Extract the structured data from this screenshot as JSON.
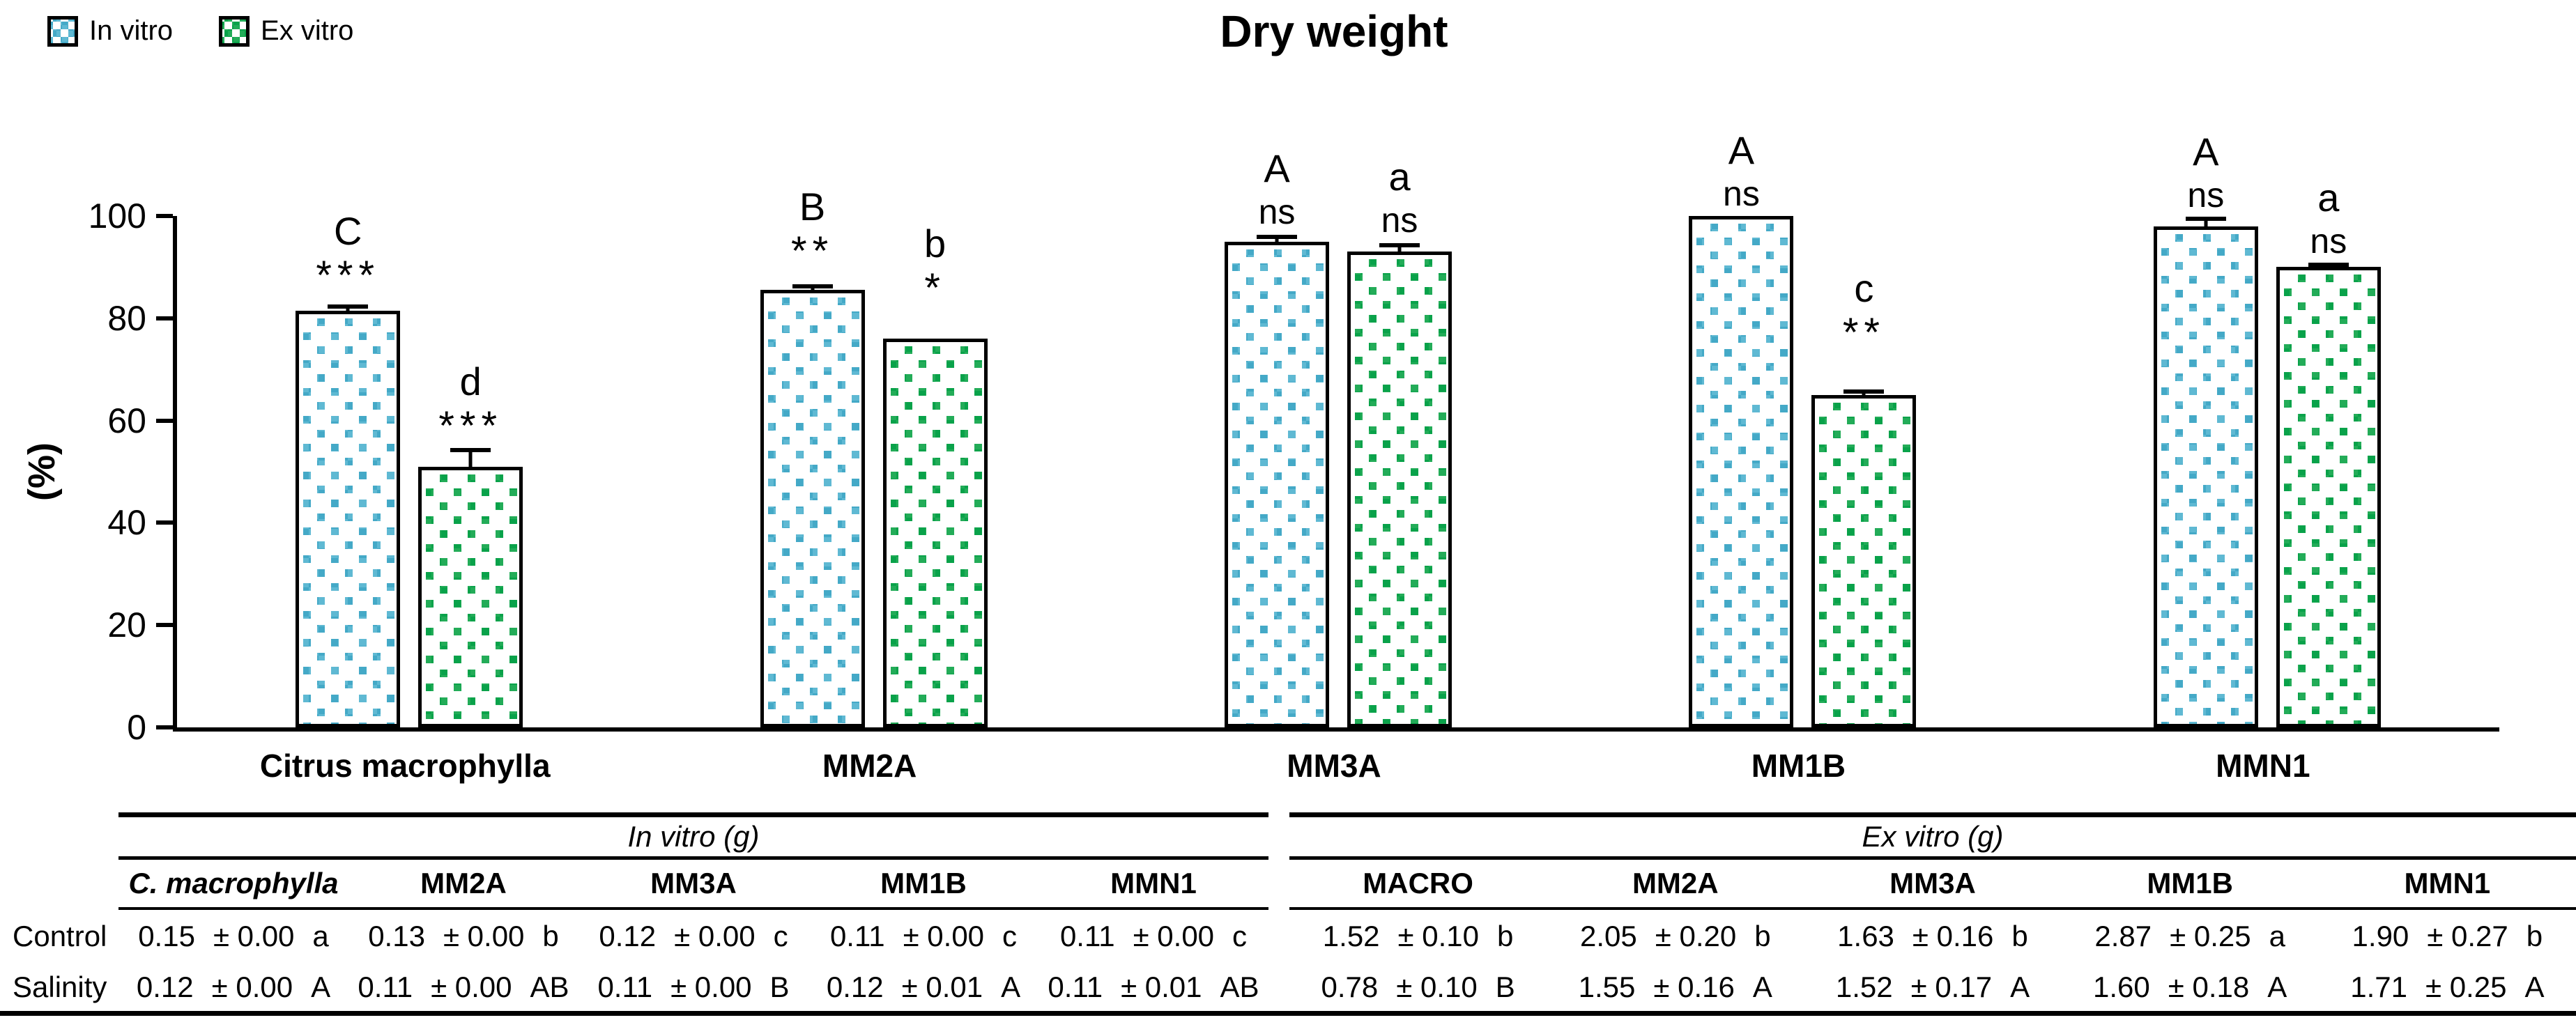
{
  "title": "Dry weight",
  "legend": [
    {
      "label": "In vitro",
      "color": "#44a9c7"
    },
    {
      "label": "Ex vitro",
      "color": "#09a24a"
    }
  ],
  "chart_data": {
    "type": "bar",
    "title": "Dry weight",
    "xlabel": "",
    "ylabel": "(%)",
    "ylim": [
      0,
      100
    ],
    "yticks": [
      0,
      20,
      40,
      60,
      80,
      100
    ],
    "grid": false,
    "legend_position": "top-left",
    "categories": [
      "Citrus macrophylla",
      "MM2A",
      "MM3A",
      "MM1B",
      "MMN1"
    ],
    "series": [
      {
        "name": "In vitro",
        "color": "#44a9c7",
        "pattern": "white-dots",
        "values": [
          81.5,
          85.5,
          95,
          100,
          98
        ],
        "errors": [
          1,
          1,
          1.2,
          0,
          1.7
        ],
        "letters": [
          "C",
          "B",
          "A",
          "A",
          "A"
        ],
        "significance": [
          "***",
          "**",
          "ns",
          "ns",
          "ns"
        ]
      },
      {
        "name": "Ex vitro",
        "color": "#09a24a",
        "pattern": "white-dots",
        "values": [
          51,
          76,
          93,
          65,
          90
        ],
        "errors": [
          3.5,
          0,
          1.5,
          1,
          0.7
        ],
        "letters": [
          "d",
          "b",
          "a",
          "c",
          "a"
        ],
        "significance": [
          "***",
          "*",
          "ns",
          "**",
          "ns"
        ]
      }
    ]
  },
  "table": {
    "row_labels": [
      "Control",
      "Salinity"
    ],
    "halves": [
      {
        "spanner": "In vitro (g)",
        "columns": [
          "C. macrophylla",
          "MM2A",
          "MM3A",
          "MM1B",
          "MMN1"
        ],
        "columns_italic": [
          true,
          false,
          false,
          false,
          false
        ],
        "rows": [
          [
            "0.15 ± 0.00 a",
            "0.13 ± 0.00 b",
            "0.12 ± 0.00 c",
            "0.11 ± 0.00 c",
            "0.11 ± 0.00 c"
          ],
          [
            "0.12 ± 0.00 A",
            "0.11 ± 0.00 AB",
            "0.11 ± 0.00 B",
            "0.12 ± 0.01 A",
            "0.11 ± 0.01 AB"
          ]
        ]
      },
      {
        "spanner": "Ex vitro (g)",
        "columns": [
          "MACRO",
          "MM2A",
          "MM3A",
          "MM1B",
          "MMN1"
        ],
        "columns_italic": [
          false,
          false,
          false,
          false,
          false
        ],
        "rows": [
          [
            "1.52 ± 0.10 b",
            "2.05 ± 0.20 b",
            "1.63 ± 0.16 b",
            "2.87 ± 0.25 a",
            "1.90 ± 0.27 b"
          ],
          [
            "0.78 ± 0.10 B",
            "1.55 ± 0.16 A",
            "1.52 ± 0.17 A",
            "1.60 ± 0.18 A",
            "1.71 ± 0.25 A"
          ]
        ]
      }
    ]
  }
}
